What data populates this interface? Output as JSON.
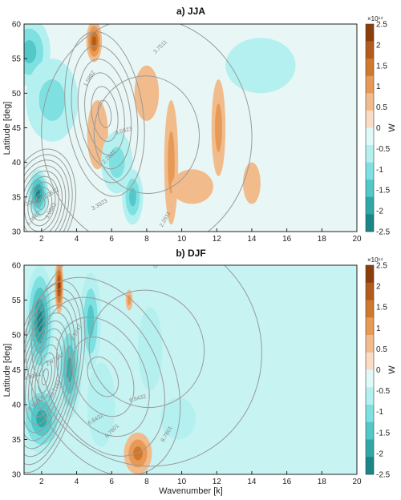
{
  "chart_data": [
    {
      "type": "heatmap",
      "title": "a) JJA",
      "xlabel": "",
      "ylabel": "Latitude [deg]",
      "xlim": [
        1,
        20
      ],
      "ylim": [
        30,
        60
      ],
      "xticks": [
        2,
        4,
        6,
        8,
        10,
        12,
        14,
        16,
        18,
        20
      ],
      "yticks": [
        30,
        35,
        40,
        45,
        50,
        55,
        60
      ],
      "colorbar": {
        "label": "W",
        "exponent": "×10¹⁴",
        "range": [
          -2.5,
          2.5
        ],
        "ticks": [
          "2.5",
          "2",
          "1.5",
          "1",
          "0.5",
          "0",
          "-0.5",
          "-1",
          "-1.5",
          "-2",
          "-2.5"
        ],
        "colors": [
          "#8c3d0c",
          "#b45a1a",
          "#d0782c",
          "#e69a55",
          "#f2bb8c",
          "#f9dcc3",
          "#dff8f8",
          "#b4f0f0",
          "#7ee0e0",
          "#52c8c8",
          "#2fa8a8",
          "#1c8585"
        ]
      },
      "contour_labels": [
        "1.0682",
        "2.2621",
        "3.3923",
        "3.1362",
        "1.5882",
        "3.7511",
        "1.2622",
        "3.5923",
        "2.2611",
        "1.0682"
      ],
      "fields": [
        {
          "x": 1.8,
          "y": 35.5,
          "value": -2.1,
          "sx": 0.6,
          "sy": 3.5
        },
        {
          "x": 1.3,
          "y": 56,
          "value": -1.2,
          "sx": 1.2,
          "sy": 5
        },
        {
          "x": 2.6,
          "y": 49,
          "value": -0.8,
          "sx": 1.5,
          "sy": 6
        },
        {
          "x": 5.0,
          "y": 57.5,
          "value": 1.7,
          "sx": 0.45,
          "sy": 3
        },
        {
          "x": 5.2,
          "y": 44,
          "value": 0.6,
          "sx": 0.6,
          "sy": 5
        },
        {
          "x": 6.3,
          "y": 40,
          "value": -0.8,
          "sx": 0.9,
          "sy": 4.5
        },
        {
          "x": 7.2,
          "y": 35,
          "value": -1.1,
          "sx": 0.6,
          "sy": 4
        },
        {
          "x": 8.0,
          "y": 50,
          "value": 0.6,
          "sx": 0.7,
          "sy": 4
        },
        {
          "x": 9.4,
          "y": 40,
          "value": 0.9,
          "sx": 0.4,
          "sy": 9
        },
        {
          "x": 10.6,
          "y": 36.5,
          "value": 0.5,
          "sx": 1.2,
          "sy": 2.5
        },
        {
          "x": 12.1,
          "y": 45,
          "value": 0.7,
          "sx": 0.4,
          "sy": 7
        },
        {
          "x": 14.0,
          "y": 37,
          "value": 0.4,
          "sx": 0.5,
          "sy": 3
        },
        {
          "x": 14.5,
          "y": 54,
          "value": -0.3,
          "sx": 2.0,
          "sy": 4
        }
      ],
      "contours": [
        {
          "x": 2.0,
          "y": 34,
          "sx": 1.9,
          "sy": 8,
          "rot": 10,
          "levels": 10
        },
        {
          "x": 5.6,
          "y": 47,
          "sx": 2.2,
          "sy": 12,
          "rot": -8,
          "levels": 6
        },
        {
          "x": 8.0,
          "y": 44,
          "sx": 6.0,
          "sy": 17,
          "rot": -5,
          "levels": 2
        }
      ]
    },
    {
      "type": "heatmap",
      "title": "b) DJF",
      "xlabel": "Wavenumber [k]",
      "ylabel": "Latitude [deg]",
      "xlim": [
        1,
        20
      ],
      "ylim": [
        30,
        60
      ],
      "xticks": [
        2,
        4,
        6,
        8,
        10,
        12,
        14,
        16,
        18,
        20
      ],
      "yticks": [
        30,
        35,
        40,
        45,
        50,
        55,
        60
      ],
      "colorbar": {
        "label": "W",
        "exponent": "×10¹⁴",
        "range": [
          -2.5,
          2.5
        ],
        "ticks": [
          "2.5",
          "2",
          "1.5",
          "1",
          "0.5",
          "0",
          "-0.5",
          "-1",
          "-1.5",
          "-2",
          "-2.5"
        ],
        "colors": [
          "#8c3d0c",
          "#b45a1a",
          "#d0782c",
          "#e69a55",
          "#f2bb8c",
          "#f9dcc3",
          "#dff8f8",
          "#b4f0f0",
          "#7ee0e0",
          "#52c8c8",
          "#2fa8a8",
          "#1c8585"
        ]
      },
      "contour_labels": [
        "10.7167",
        "8.7801",
        "6.8432",
        "4.9064",
        "2.9747",
        "0.96806",
        "2.97147",
        "6.8432",
        "8.7801",
        "0.96806"
      ],
      "fields": [
        {
          "x": 1.9,
          "y": 52,
          "value": -2.3,
          "sx": 0.8,
          "sy": 8
        },
        {
          "x": 2.0,
          "y": 38,
          "value": -1.6,
          "sx": 1.2,
          "sy": 5
        },
        {
          "x": 3.0,
          "y": 57,
          "value": 2.0,
          "sx": 0.25,
          "sy": 4
        },
        {
          "x": 3.6,
          "y": 45,
          "value": -1.8,
          "sx": 0.7,
          "sy": 7
        },
        {
          "x": 4.8,
          "y": 52,
          "value": -1.3,
          "sx": 0.6,
          "sy": 7
        },
        {
          "x": 5.4,
          "y": 40,
          "value": -0.6,
          "sx": 0.8,
          "sy": 6
        },
        {
          "x": 7.5,
          "y": 33,
          "value": 1.1,
          "sx": 0.8,
          "sy": 3
        },
        {
          "x": 7.0,
          "y": 55,
          "value": 0.8,
          "sx": 0.2,
          "sy": 1.5
        },
        {
          "x": 8.2,
          "y": 48,
          "value": -0.5,
          "sx": 0.7,
          "sy": 6
        },
        {
          "x": 9.8,
          "y": 38,
          "value": -0.5,
          "sx": 1.0,
          "sy": 3
        }
      ],
      "contours": [
        {
          "x": 2.2,
          "y": 44,
          "sx": 2.0,
          "sy": 14,
          "rot": 12,
          "levels": 12
        },
        {
          "x": 5.5,
          "y": 44,
          "sx": 4.0,
          "sy": 15,
          "rot": -25,
          "levels": 5
        },
        {
          "x": 8.0,
          "y": 48,
          "sx": 6.5,
          "sy": 17,
          "rot": -30,
          "levels": 2
        }
      ]
    }
  ]
}
